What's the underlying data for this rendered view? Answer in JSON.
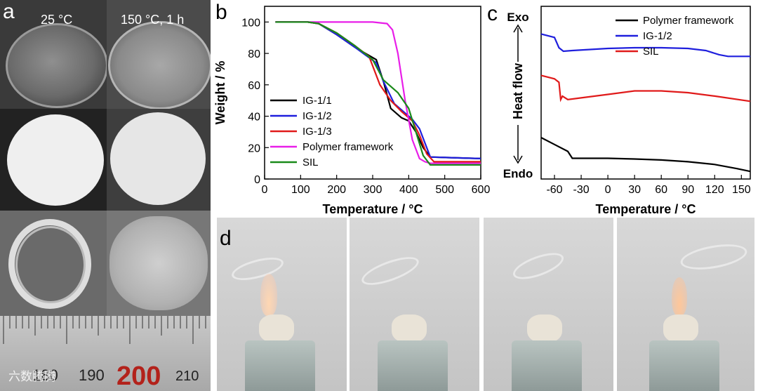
{
  "panels": {
    "a": "a",
    "b": "b",
    "c": "c",
    "d": "d"
  },
  "panel_a": {
    "col1_label": "25 °C",
    "col2_label": "150 °C, 1 h",
    "ruler_labels": [
      "180",
      "190",
      "200",
      "210"
    ],
    "watermark": "六数腾腾"
  },
  "colors": {
    "black": "#000000",
    "blue": "#1f1fdd",
    "red": "#e01a1a",
    "magenta": "#e81ee8",
    "green": "#1a8a1a"
  },
  "chart_data": [
    {
      "type": "line",
      "id": "b",
      "xlabel": "Temperature / °C",
      "ylabel": "Weight / %",
      "xlim": [
        0,
        600
      ],
      "ylim": [
        0,
        110
      ],
      "xticks": [
        0,
        100,
        200,
        300,
        400,
        500,
        600
      ],
      "yticks": [
        0,
        20,
        40,
        60,
        80,
        100
      ],
      "legend_position": "left",
      "series": [
        {
          "name": "IG-1/1",
          "color": "#000000",
          "x": [
            30,
            120,
            150,
            200,
            250,
            280,
            310,
            330,
            350,
            380,
            400,
            420,
            440,
            460,
            600
          ],
          "y": [
            100,
            100,
            99,
            92,
            84,
            80,
            76,
            62,
            45,
            39,
            37,
            30,
            20,
            14,
            13
          ]
        },
        {
          "name": "IG-1/2",
          "color": "#1f1fdd",
          "x": [
            30,
            120,
            150,
            200,
            250,
            280,
            310,
            330,
            360,
            390,
            410,
            430,
            450,
            460,
            600
          ],
          "y": [
            100,
            100,
            99,
            92,
            84,
            79,
            74,
            62,
            48,
            42,
            38,
            32,
            20,
            14,
            13
          ]
        },
        {
          "name": "IG-1/3",
          "color": "#e01a1a",
          "x": [
            30,
            120,
            150,
            200,
            250,
            290,
            320,
            350,
            380,
            410,
            430,
            450,
            470,
            600
          ],
          "y": [
            100,
            100,
            99,
            93,
            85,
            78,
            60,
            50,
            43,
            37,
            28,
            16,
            11,
            11
          ]
        },
        {
          "name": "Polymer framework",
          "color": "#e81ee8",
          "x": [
            30,
            300,
            340,
            355,
            370,
            390,
            410,
            430,
            445,
            460,
            600
          ],
          "y": [
            100,
            100,
            99,
            95,
            80,
            50,
            25,
            13,
            11,
            10,
            10
          ]
        },
        {
          "name": "SIL",
          "color": "#1a8a1a",
          "x": [
            30,
            120,
            150,
            200,
            250,
            300,
            330,
            370,
            400,
            420,
            440,
            460,
            600
          ],
          "y": [
            100,
            100,
            99,
            93,
            85,
            76,
            63,
            55,
            45,
            30,
            15,
            9,
            9
          ]
        }
      ]
    },
    {
      "type": "line",
      "id": "c",
      "xlabel": "Temperature / °C",
      "ylabel": "Heat flow",
      "y_top_label": "Exo",
      "y_bottom_label": "Endo",
      "xlim": [
        -75,
        160
      ],
      "xticks": [
        -60,
        -30,
        0,
        30,
        60,
        90,
        120,
        150
      ],
      "legend_position": "top-right",
      "series": [
        {
          "name": "Polymer framework",
          "color": "#000000",
          "x": [
            -75,
            -60,
            -45,
            -40,
            -30,
            0,
            30,
            60,
            90,
            120,
            145,
            160
          ],
          "y": [
            1.2,
            1.0,
            0.8,
            0.6,
            0.6,
            0.6,
            0.58,
            0.55,
            0.5,
            0.42,
            0.3,
            0.22
          ]
        },
        {
          "name": "IG-1/2",
          "color": "#1f1fdd",
          "x": [
            -75,
            -60,
            -55,
            -50,
            -40,
            0,
            30,
            60,
            90,
            110,
            125,
            135,
            160
          ],
          "y": [
            4.2,
            4.1,
            3.8,
            3.7,
            3.72,
            3.78,
            3.8,
            3.8,
            3.78,
            3.72,
            3.6,
            3.55,
            3.55
          ]
        },
        {
          "name": "SIL",
          "color": "#e01a1a",
          "x": [
            -75,
            -60,
            -55,
            -53,
            -51,
            -45,
            -30,
            0,
            30,
            60,
            90,
            120,
            160
          ],
          "y": [
            3.0,
            2.9,
            2.8,
            2.3,
            2.4,
            2.3,
            2.35,
            2.45,
            2.55,
            2.55,
            2.5,
            2.4,
            2.25
          ]
        }
      ]
    }
  ]
}
